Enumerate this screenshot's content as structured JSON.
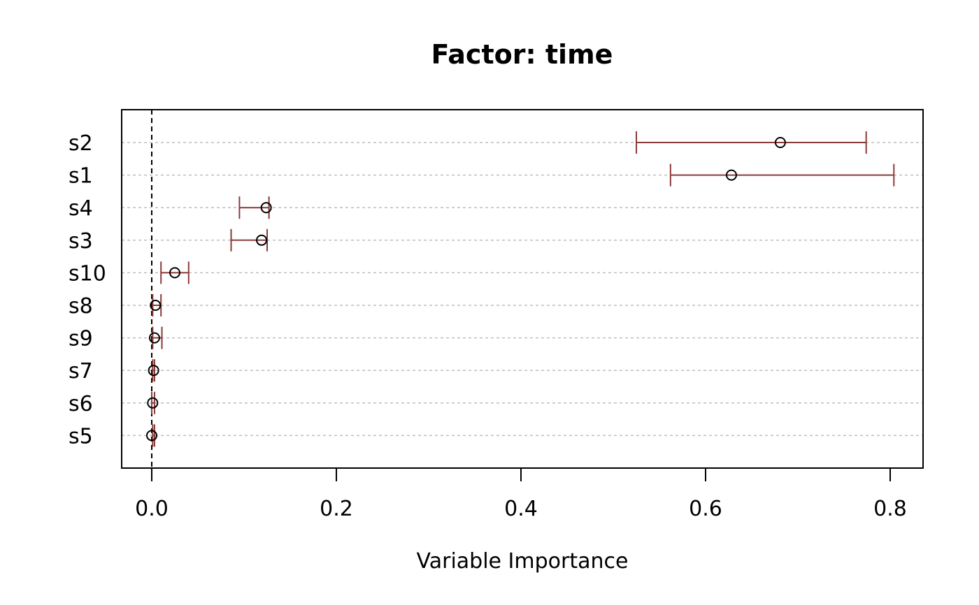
{
  "chart_data": {
    "type": "scatter",
    "title": "Factor: time",
    "xlabel": "Variable Importance",
    "ylabel": "",
    "xlim": [
      -0.016,
      0.8
    ],
    "xticks": [
      "0.0",
      "0.2",
      "0.4",
      "0.6",
      "0.8"
    ],
    "xtick_values": [
      0.0,
      0.2,
      0.4,
      0.6,
      0.8
    ],
    "grid": "horizontal dotted",
    "reference_line_x": 0.0,
    "categories": [
      "s2",
      "s1",
      "s4",
      "s3",
      "s10",
      "s8",
      "s9",
      "s7",
      "s6",
      "s5"
    ],
    "values": [
      0.681,
      0.628,
      0.124,
      0.119,
      0.025,
      0.004,
      0.003,
      0.002,
      0.001,
      0.0
    ],
    "lower": [
      0.525,
      0.562,
      0.095,
      0.086,
      0.01,
      0.001,
      0.001,
      0.001,
      0.0,
      0.001
    ],
    "upper": [
      0.774,
      0.804,
      0.127,
      0.125,
      0.04,
      0.01,
      0.011,
      0.003,
      0.003,
      0.003
    ],
    "colors": {
      "interval": "#8B3A3A",
      "point": "#000000",
      "grid": "#bebebe",
      "axis": "#000000"
    }
  }
}
